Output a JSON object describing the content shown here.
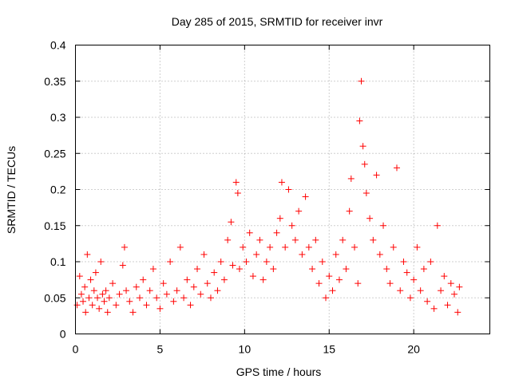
{
  "chart_data": {
    "type": "scatter",
    "title": "Day 285 of 2015, SRMTID for receiver invr",
    "xlabel": "GPS time / hours",
    "ylabel": "SRMTID / TECUs",
    "xlim": [
      0,
      24.5
    ],
    "ylim": [
      0,
      0.4
    ],
    "xticks": [
      0,
      5,
      10,
      15,
      20
    ],
    "xtick_labels": [
      "0",
      "5",
      "10",
      "15",
      "20"
    ],
    "yticks": [
      0,
      0.05,
      0.1,
      0.15,
      0.2,
      0.25,
      0.3,
      0.35,
      0.4
    ],
    "ytick_labels": [
      "0",
      "0.05",
      "0.1",
      "0.15",
      "0.2",
      "0.25",
      "0.3",
      "0.35",
      "0.4"
    ],
    "grid": true,
    "marker": "+",
    "color": "#ff0000",
    "series": [
      {
        "name": "SRMTID",
        "points": [
          [
            0.1,
            0.04
          ],
          [
            0.25,
            0.08
          ],
          [
            0.35,
            0.055
          ],
          [
            0.45,
            0.045
          ],
          [
            0.55,
            0.065
          ],
          [
            0.6,
            0.03
          ],
          [
            0.7,
            0.11
          ],
          [
            0.8,
            0.05
          ],
          [
            0.9,
            0.075
          ],
          [
            1.0,
            0.04
          ],
          [
            1.1,
            0.06
          ],
          [
            1.2,
            0.085
          ],
          [
            1.3,
            0.05
          ],
          [
            1.4,
            0.035
          ],
          [
            1.5,
            0.1
          ],
          [
            1.6,
            0.055
          ],
          [
            1.7,
            0.045
          ],
          [
            1.8,
            0.06
          ],
          [
            1.9,
            0.03
          ],
          [
            2.0,
            0.05
          ],
          [
            2.2,
            0.07
          ],
          [
            2.4,
            0.04
          ],
          [
            2.6,
            0.055
          ],
          [
            2.8,
            0.095
          ],
          [
            2.9,
            0.12
          ],
          [
            3.0,
            0.06
          ],
          [
            3.2,
            0.045
          ],
          [
            3.4,
            0.03
          ],
          [
            3.6,
            0.065
          ],
          [
            3.8,
            0.05
          ],
          [
            4.0,
            0.075
          ],
          [
            4.2,
            0.04
          ],
          [
            4.4,
            0.06
          ],
          [
            4.6,
            0.09
          ],
          [
            4.8,
            0.05
          ],
          [
            5.0,
            0.035
          ],
          [
            5.2,
            0.07
          ],
          [
            5.4,
            0.055
          ],
          [
            5.6,
            0.1
          ],
          [
            5.8,
            0.045
          ],
          [
            6.0,
            0.06
          ],
          [
            6.2,
            0.12
          ],
          [
            6.4,
            0.05
          ],
          [
            6.6,
            0.075
          ],
          [
            6.8,
            0.04
          ],
          [
            7.0,
            0.065
          ],
          [
            7.2,
            0.09
          ],
          [
            7.4,
            0.055
          ],
          [
            7.6,
            0.11
          ],
          [
            7.8,
            0.07
          ],
          [
            8.0,
            0.05
          ],
          [
            8.2,
            0.085
          ],
          [
            8.4,
            0.06
          ],
          [
            8.6,
            0.1
          ],
          [
            8.8,
            0.075
          ],
          [
            9.0,
            0.13
          ],
          [
            9.2,
            0.155
          ],
          [
            9.3,
            0.095
          ],
          [
            9.5,
            0.21
          ],
          [
            9.6,
            0.195
          ],
          [
            9.7,
            0.09
          ],
          [
            9.9,
            0.12
          ],
          [
            10.1,
            0.1
          ],
          [
            10.3,
            0.14
          ],
          [
            10.5,
            0.08
          ],
          [
            10.7,
            0.11
          ],
          [
            10.9,
            0.13
          ],
          [
            11.1,
            0.075
          ],
          [
            11.3,
            0.1
          ],
          [
            11.5,
            0.12
          ],
          [
            11.7,
            0.09
          ],
          [
            11.9,
            0.14
          ],
          [
            12.1,
            0.16
          ],
          [
            12.2,
            0.21
          ],
          [
            12.4,
            0.12
          ],
          [
            12.6,
            0.2
          ],
          [
            12.8,
            0.15
          ],
          [
            13.0,
            0.13
          ],
          [
            13.2,
            0.17
          ],
          [
            13.4,
            0.11
          ],
          [
            13.6,
            0.19
          ],
          [
            13.8,
            0.12
          ],
          [
            14.0,
            0.09
          ],
          [
            14.2,
            0.13
          ],
          [
            14.4,
            0.07
          ],
          [
            14.6,
            0.1
          ],
          [
            14.8,
            0.05
          ],
          [
            15.0,
            0.08
          ],
          [
            15.2,
            0.06
          ],
          [
            15.4,
            0.11
          ],
          [
            15.6,
            0.075
          ],
          [
            15.8,
            0.13
          ],
          [
            16.0,
            0.09
          ],
          [
            16.2,
            0.17
          ],
          [
            16.3,
            0.215
          ],
          [
            16.5,
            0.12
          ],
          [
            16.7,
            0.07
          ],
          [
            16.8,
            0.295
          ],
          [
            16.9,
            0.35
          ],
          [
            17.0,
            0.26
          ],
          [
            17.1,
            0.235
          ],
          [
            17.2,
            0.195
          ],
          [
            17.4,
            0.16
          ],
          [
            17.6,
            0.13
          ],
          [
            17.8,
            0.22
          ],
          [
            18.0,
            0.11
          ],
          [
            18.2,
            0.15
          ],
          [
            18.4,
            0.09
          ],
          [
            18.6,
            0.07
          ],
          [
            18.8,
            0.12
          ],
          [
            19.0,
            0.23
          ],
          [
            19.2,
            0.06
          ],
          [
            19.4,
            0.1
          ],
          [
            19.6,
            0.085
          ],
          [
            19.8,
            0.05
          ],
          [
            20.0,
            0.075
          ],
          [
            20.2,
            0.12
          ],
          [
            20.4,
            0.06
          ],
          [
            20.6,
            0.09
          ],
          [
            20.8,
            0.045
          ],
          [
            21.0,
            0.1
          ],
          [
            21.2,
            0.035
          ],
          [
            21.4,
            0.15
          ],
          [
            21.6,
            0.06
          ],
          [
            21.8,
            0.08
          ],
          [
            22.0,
            0.04
          ],
          [
            22.2,
            0.07
          ],
          [
            22.4,
            0.055
          ],
          [
            22.6,
            0.03
          ],
          [
            22.7,
            0.065
          ]
        ]
      }
    ]
  }
}
